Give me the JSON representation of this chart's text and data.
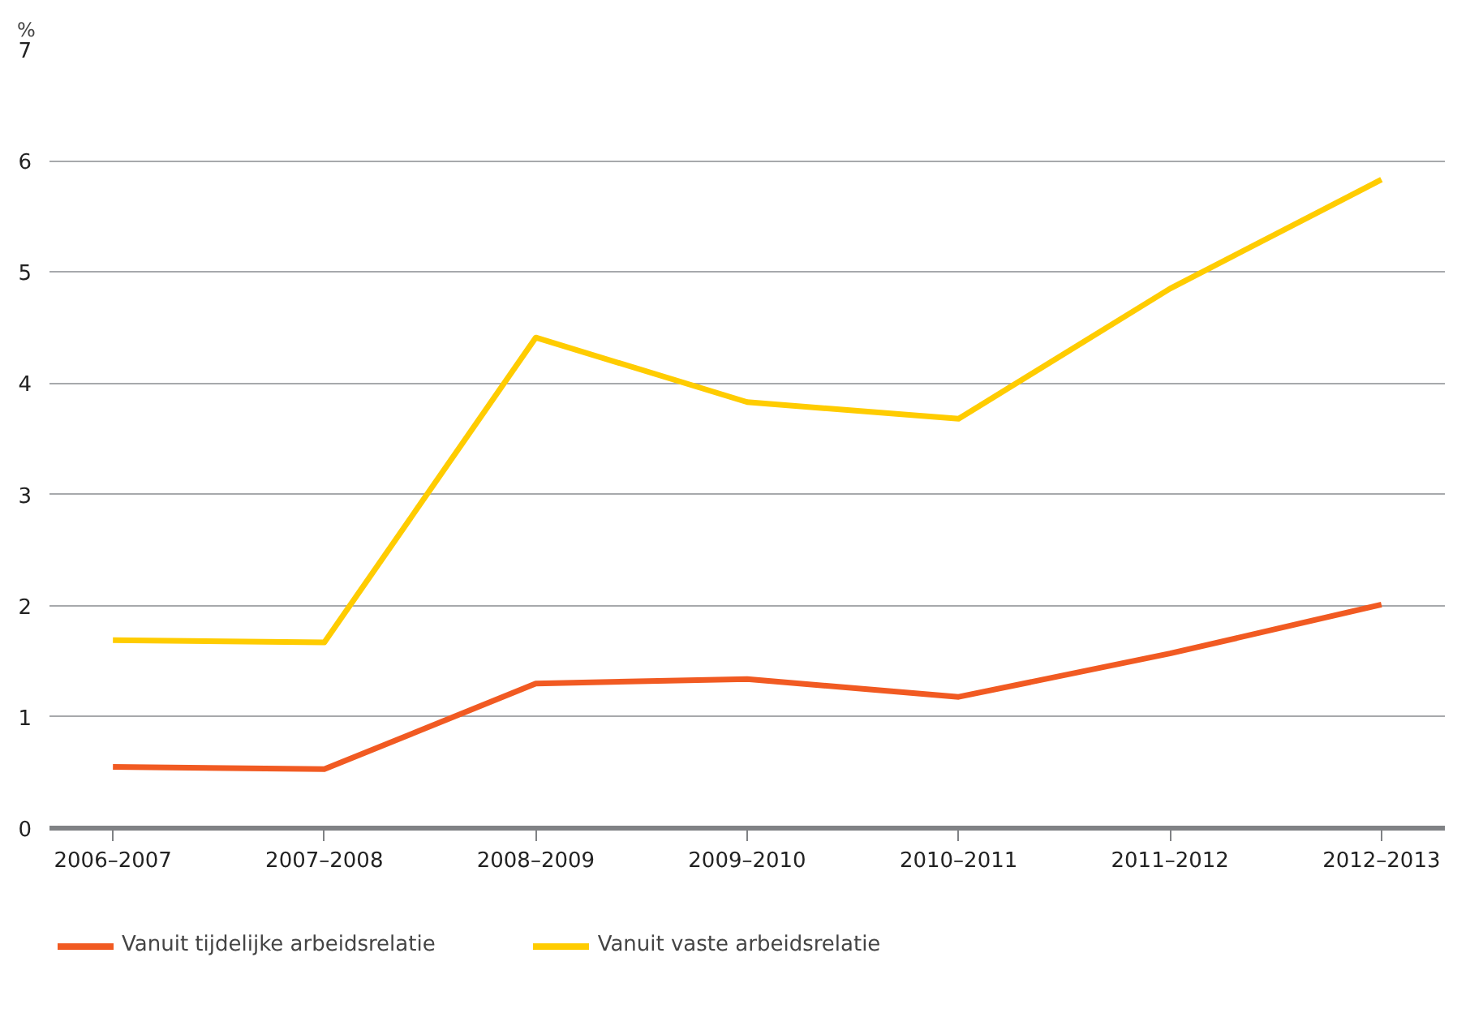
{
  "chart_data": {
    "type": "line",
    "ylabel": "%",
    "categories": [
      "2006–2007",
      "2007–2008",
      "2008–2009",
      "2009–2010",
      "2010–2011",
      "2011–2012",
      "2012–2013"
    ],
    "series": [
      {
        "name": "Vanuit tijdelijke arbeidsrelatie",
        "color": "#f15a22",
        "values": [
          0.55,
          0.53,
          1.3,
          1.34,
          1.18,
          1.57,
          2.01
        ]
      },
      {
        "name": "Vanuit vaste arbeidsrelatie",
        "color": "#ffcc00",
        "values": [
          1.69,
          1.67,
          4.41,
          3.83,
          3.68,
          4.85,
          5.83
        ]
      }
    ],
    "ylim": [
      0,
      7
    ],
    "yticks": [
      0,
      1,
      2,
      3,
      4,
      5,
      6,
      7
    ],
    "grid": "y",
    "legend": "bottom",
    "marker": "none",
    "line_style": "solid"
  }
}
